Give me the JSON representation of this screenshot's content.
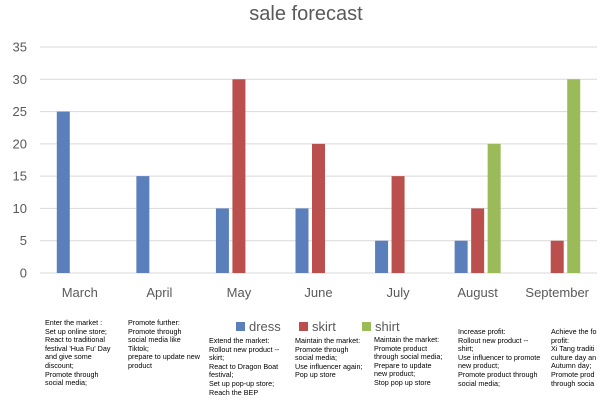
{
  "chart_data": {
    "type": "bar",
    "title": "sale forecast",
    "categories": [
      "March",
      "April",
      "May",
      "June",
      "July",
      "August",
      "September"
    ],
    "series": [
      {
        "name": "dress",
        "color": "#5b7fbb",
        "values": [
          25,
          15,
          10,
          10,
          5,
          5,
          0
        ]
      },
      {
        "name": "skirt",
        "color": "#bb4f4d",
        "values": [
          0,
          0,
          30,
          20,
          15,
          10,
          5
        ]
      },
      {
        "name": "shirt",
        "color": "#9bbb59",
        "values": [
          0,
          0,
          0,
          0,
          0,
          20,
          30
        ]
      }
    ],
    "ylim": [
      0,
      35
    ],
    "yticks": [
      0,
      5,
      10,
      15,
      20,
      25,
      30,
      35
    ],
    "grid": true,
    "legend_position": "bottom"
  },
  "notes": [
    "Enter the market :\nSet up online store;\nReact to traditional festival 'Hua Fu' Day and give some discount;\nPromote through social media;",
    "Promote further:\nPromote through social media like Tiktok;\nprepare to update new product",
    "Extend the market:\nRollout new product -- skirt;\nReact to Dragon Boat festival;\nSet up pop-up store;\nReach the BEP",
    "Maintain the market:\nPromote through social media;\nUse influencer again;\nPop up store",
    "Maintain the market:\nPromote product through social media;\nPrepare to update new product;\nStop pop up store",
    "Increase profit:\nRollout new product -- shirt;\nUse influencer to promote new product;\nPromote product through social media;",
    "Achieve the fo\nprofit:\nXi Tang traditi\nculture day an\nAutumn day;\nPromote prod\nthrough socia"
  ]
}
